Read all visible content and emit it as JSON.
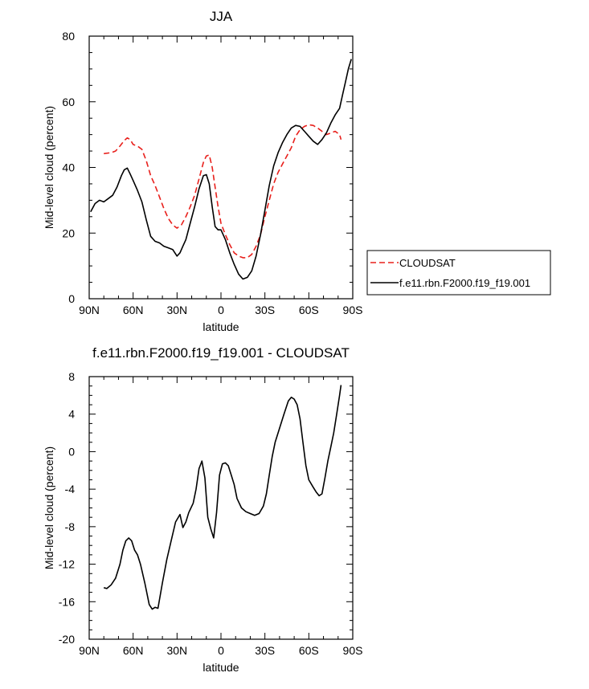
{
  "chart_data": [
    {
      "type": "line",
      "title": "JJA",
      "xlabel": "latitude",
      "ylabel": "Mid-level cloud (percent)",
      "xlim": [
        -90,
        90
      ],
      "ylim": [
        0,
        80
      ],
      "x_ticks": [
        -90,
        -60,
        -30,
        0,
        30,
        60,
        90
      ],
      "x_tick_labels": [
        "90N",
        "60N",
        "30N",
        "0",
        "30S",
        "60S",
        "90S"
      ],
      "y_ticks": [
        0,
        20,
        40,
        60,
        80
      ],
      "y_tick_labels": [
        "0",
        "20",
        "40",
        "60",
        "80"
      ],
      "legend_position": "right",
      "series": [
        {
          "name": "CLOUDSAT",
          "color": "#e8201c",
          "dash": "dashed",
          "x": [
            -80,
            -75,
            -72,
            -69,
            -66,
            -64,
            -62,
            -60,
            -57,
            -54,
            -51,
            -48,
            -45,
            -42,
            -39,
            -36,
            -33,
            -30,
            -27,
            -24,
            -21,
            -18,
            -15,
            -12,
            -10,
            -8,
            -6,
            -4,
            -2,
            0,
            3,
            6,
            9,
            12,
            15,
            18,
            21,
            24,
            27,
            30,
            33,
            36,
            39,
            42,
            45,
            48,
            51,
            54,
            57,
            60,
            63,
            66,
            69,
            72,
            75,
            78,
            81,
            82
          ],
          "y": [
            44.2,
            44.5,
            45,
            46.5,
            48.2,
            49,
            48.5,
            47,
            46.5,
            45.5,
            42,
            37.5,
            34.5,
            31,
            27.5,
            24.5,
            22.5,
            21.5,
            22.5,
            25,
            28,
            31.5,
            36.5,
            41.5,
            43.5,
            43.8,
            40,
            34,
            28,
            23,
            19.5,
            16.5,
            14,
            13,
            12.5,
            12.5,
            13.5,
            16,
            19.5,
            25,
            30,
            35,
            38.5,
            41,
            43.5,
            46,
            49.5,
            51.5,
            52.5,
            53,
            52.8,
            52,
            51,
            50,
            50.5,
            51,
            50,
            48.5
          ]
        },
        {
          "name": "f.e11.rbn.F2000.f19_f19.001",
          "color": "#000000",
          "dash": "solid",
          "x": [
            -89,
            -86,
            -83,
            -80,
            -77,
            -74,
            -71,
            -68,
            -66,
            -64,
            -62,
            -60,
            -57,
            -54,
            -51,
            -48,
            -45,
            -42,
            -39,
            -36,
            -33,
            -30,
            -28,
            -26,
            -24,
            -21,
            -18,
            -15,
            -12,
            -10,
            -8,
            -6,
            -4,
            -2,
            0,
            3,
            6,
            9,
            12,
            15,
            18,
            21,
            24,
            27,
            30,
            33,
            36,
            39,
            42,
            45,
            48,
            51,
            54,
            57,
            60,
            63,
            66,
            69,
            72,
            75,
            78,
            81,
            83,
            85,
            87,
            89
          ],
          "y": [
            26.5,
            29,
            30,
            29.5,
            30.5,
            31.5,
            34,
            37.5,
            39.3,
            39.8,
            38,
            36,
            33,
            29.5,
            24,
            19,
            17.5,
            17,
            16,
            15.5,
            15,
            13,
            14,
            16,
            18,
            23,
            28,
            33.5,
            37.5,
            37.8,
            35,
            28,
            22,
            21,
            21,
            18,
            14,
            10.5,
            7.5,
            6,
            6.5,
            8.5,
            13,
            19.5,
            27,
            34.5,
            40.5,
            44.5,
            47.5,
            50,
            52,
            52.8,
            52.5,
            51,
            49.5,
            48,
            47,
            48.5,
            50.5,
            53.5,
            56,
            58,
            62,
            66,
            70,
            73
          ]
        }
      ]
    },
    {
      "type": "line",
      "title": "f.e11.rbn.F2000.f19_f19.001 - CLOUDSAT",
      "xlabel": "latitude",
      "ylabel": "Mid-level cloud (percent)",
      "xlim": [
        -90,
        90
      ],
      "ylim": [
        -20,
        8
      ],
      "x_ticks": [
        -90,
        -60,
        -30,
        0,
        30,
        60,
        90
      ],
      "x_tick_labels": [
        "90N",
        "60N",
        "30N",
        "0",
        "30S",
        "60S",
        "90S"
      ],
      "y_ticks": [
        -20,
        -16,
        -12,
        -8,
        -4,
        0,
        4,
        8
      ],
      "y_tick_labels": [
        "-20",
        "-16",
        "-12",
        "-8",
        "-4",
        "0",
        "4",
        "8"
      ],
      "series": [
        {
          "color": "#000000",
          "dash": "solid",
          "x": [
            -80,
            -78,
            -75,
            -72,
            -69,
            -67,
            -65,
            -63,
            -61,
            -59,
            -57,
            -55,
            -52,
            -49,
            -47,
            -45,
            -43,
            -40,
            -37,
            -34,
            -31,
            -28,
            -26,
            -24,
            -22,
            -19,
            -17,
            -15,
            -13,
            -11,
            -9,
            -7,
            -5,
            -3,
            -1,
            1,
            3,
            5,
            7,
            9,
            11,
            14,
            17,
            20,
            23,
            26,
            29,
            31,
            33,
            35,
            37,
            40,
            43,
            46,
            48,
            50,
            52,
            54,
            56,
            58,
            60,
            63,
            65,
            67,
            69,
            71,
            73,
            75,
            77,
            79,
            81,
            82
          ],
          "y": [
            -14.5,
            -14.6,
            -14.2,
            -13.5,
            -12,
            -10.5,
            -9.5,
            -9.2,
            -9.5,
            -10.5,
            -11,
            -12,
            -14,
            -16.3,
            -16.8,
            -16.6,
            -16.7,
            -14,
            -11.5,
            -9.5,
            -7.5,
            -6.7,
            -8.1,
            -7.5,
            -6.5,
            -5.5,
            -4,
            -1.8,
            -1,
            -2.8,
            -7,
            -8.2,
            -9.2,
            -6.5,
            -2.5,
            -1.3,
            -1.2,
            -1.5,
            -2.5,
            -3.5,
            -5,
            -6,
            -6.4,
            -6.6,
            -6.8,
            -6.6,
            -5.8,
            -4.5,
            -2.5,
            -0.5,
            1,
            2.5,
            4,
            5.4,
            5.8,
            5.6,
            5,
            3.5,
            1,
            -1.5,
            -3,
            -3.8,
            -4.3,
            -4.7,
            -4.5,
            -2.8,
            -1,
            0.5,
            2,
            4,
            6,
            7.1
          ]
        }
      ]
    }
  ],
  "legend": {
    "items": [
      {
        "label": "CLOUDSAT",
        "color": "#e8201c",
        "dash": "dashed"
      },
      {
        "label": "f.e11.rbn.F2000.f19_f19.001",
        "color": "#000000",
        "dash": "solid"
      }
    ]
  }
}
